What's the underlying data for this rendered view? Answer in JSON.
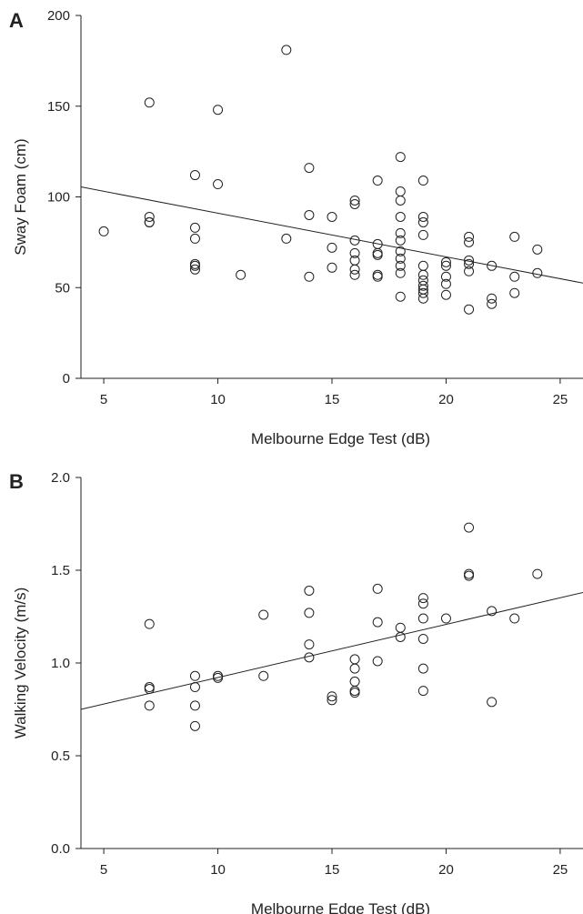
{
  "chart_data": [
    {
      "panel": "A",
      "type": "scatter",
      "xlabel": "Melbourne Edge Test (dB)",
      "ylabel": "Sway Foam (cm)",
      "xlim": [
        4,
        26
      ],
      "ylim": [
        0,
        200
      ],
      "x_ticks": [
        5,
        10,
        15,
        20,
        25
      ],
      "y_ticks": [
        0,
        50,
        100,
        150,
        200
      ],
      "grid": false,
      "marker": "open-circle",
      "regression_line": {
        "x1": 4,
        "y1": 105.5,
        "x2": 26,
        "y2": 52.5
      },
      "points": [
        [
          5,
          81
        ],
        [
          7,
          152
        ],
        [
          7,
          89
        ],
        [
          7,
          86
        ],
        [
          7,
          86
        ],
        [
          9,
          112
        ],
        [
          9,
          83
        ],
        [
          9,
          77
        ],
        [
          9,
          63
        ],
        [
          9,
          62
        ],
        [
          9,
          60
        ],
        [
          10,
          148
        ],
        [
          10,
          107
        ],
        [
          11,
          57
        ],
        [
          13,
          181
        ],
        [
          13,
          77
        ],
        [
          14,
          116
        ],
        [
          14,
          90
        ],
        [
          14,
          56
        ],
        [
          15,
          89
        ],
        [
          15,
          72
        ],
        [
          15,
          61
        ],
        [
          16,
          98
        ],
        [
          16,
          96
        ],
        [
          16,
          76
        ],
        [
          16,
          69
        ],
        [
          16,
          65
        ],
        [
          16,
          60
        ],
        [
          16,
          57
        ],
        [
          17,
          109
        ],
        [
          17,
          74
        ],
        [
          17,
          69
        ],
        [
          17,
          68
        ],
        [
          17,
          57
        ],
        [
          17,
          56
        ],
        [
          18,
          122
        ],
        [
          18,
          103
        ],
        [
          18,
          98
        ],
        [
          18,
          89
        ],
        [
          18,
          80
        ],
        [
          18,
          76
        ],
        [
          18,
          70
        ],
        [
          18,
          66
        ],
        [
          18,
          62
        ],
        [
          18,
          58
        ],
        [
          18,
          45
        ],
        [
          19,
          109
        ],
        [
          19,
          89
        ],
        [
          19,
          86
        ],
        [
          19,
          79
        ],
        [
          19,
          62
        ],
        [
          19,
          57
        ],
        [
          19,
          54
        ],
        [
          19,
          51
        ],
        [
          19,
          49
        ],
        [
          19,
          47
        ],
        [
          19,
          44
        ],
        [
          20,
          64
        ],
        [
          20,
          62
        ],
        [
          20,
          56
        ],
        [
          20,
          52
        ],
        [
          20,
          46
        ],
        [
          21,
          78
        ],
        [
          21,
          75
        ],
        [
          21,
          65
        ],
        [
          21,
          63
        ],
        [
          21,
          59
        ],
        [
          21,
          38
        ],
        [
          22,
          62
        ],
        [
          22,
          44
        ],
        [
          22,
          41
        ],
        [
          23,
          78
        ],
        [
          23,
          56
        ],
        [
          23,
          47
        ],
        [
          24,
          71
        ],
        [
          24,
          58
        ]
      ]
    },
    {
      "panel": "B",
      "type": "scatter",
      "xlabel": "Melbourne Edge Test (dB)",
      "ylabel": "Walking Velocity (m/s)",
      "xlim": [
        4,
        26
      ],
      "ylim": [
        0.0,
        2.0
      ],
      "x_ticks": [
        5,
        10,
        15,
        20,
        25
      ],
      "y_ticks": [
        "0.0",
        "0.5",
        "1.0",
        "1.5",
        "2.0"
      ],
      "grid": false,
      "marker": "open-circle",
      "regression_line": {
        "x1": 4,
        "y1": 0.75,
        "x2": 26,
        "y2": 1.38
      },
      "points": [
        [
          7,
          1.21
        ],
        [
          7,
          0.87
        ],
        [
          7,
          0.86
        ],
        [
          7,
          0.77
        ],
        [
          9,
          0.93
        ],
        [
          9,
          0.87
        ],
        [
          9,
          0.77
        ],
        [
          9,
          0.66
        ],
        [
          10,
          0.93
        ],
        [
          10,
          0.92
        ],
        [
          12,
          1.26
        ],
        [
          12,
          0.93
        ],
        [
          14,
          1.39
        ],
        [
          14,
          1.27
        ],
        [
          14,
          1.1
        ],
        [
          14,
          1.03
        ],
        [
          15,
          0.82
        ],
        [
          15,
          0.8
        ],
        [
          16,
          1.02
        ],
        [
          16,
          0.97
        ],
        [
          16,
          0.9
        ],
        [
          16,
          0.85
        ],
        [
          16,
          0.84
        ],
        [
          17,
          1.4
        ],
        [
          17,
          1.22
        ],
        [
          17,
          1.01
        ],
        [
          18,
          1.19
        ],
        [
          18,
          1.14
        ],
        [
          19,
          1.35
        ],
        [
          19,
          1.32
        ],
        [
          19,
          1.24
        ],
        [
          19,
          1.13
        ],
        [
          19,
          0.97
        ],
        [
          19,
          0.85
        ],
        [
          20,
          1.24
        ],
        [
          21,
          1.73
        ],
        [
          21,
          1.48
        ],
        [
          21,
          1.47
        ],
        [
          22,
          1.28
        ],
        [
          22,
          0.79
        ],
        [
          23,
          1.24
        ],
        [
          24,
          1.48
        ]
      ]
    }
  ]
}
